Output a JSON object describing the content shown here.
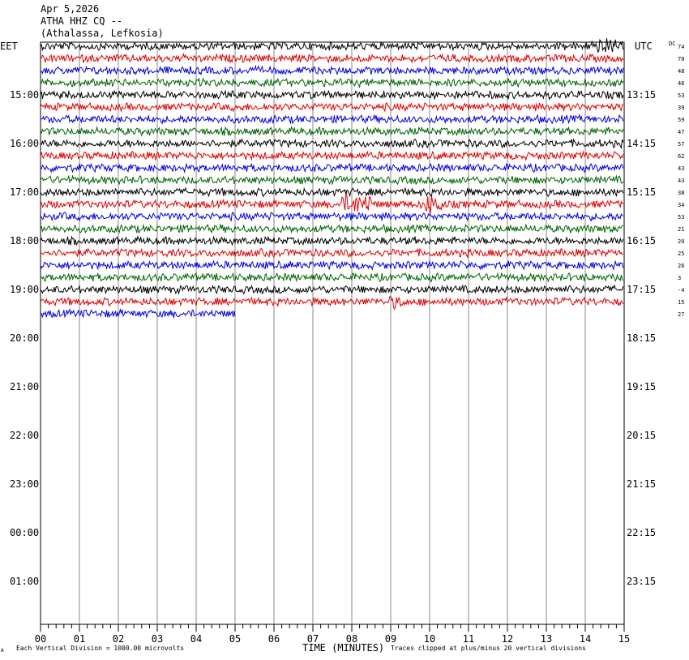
{
  "header": {
    "date": "Apr 5,2026",
    "station": "ATHA HHZ CQ --",
    "location": "(Athalassa, Lefkosia)"
  },
  "left_tz": "EET",
  "right_tz": "UTC",
  "dc_label": "DC",
  "footer": {
    "corner_mark": "A",
    "scale_note": "Each Vertical Division = 1000.00 microvolts",
    "xlabel": "TIME (MINUTES)",
    "clip_note": "Traces clipped at plus/minus 20 vertical divisions"
  },
  "chart_data": {
    "type": "line",
    "title": "ATHA HHZ CQ --",
    "xlabel": "TIME (MINUTES)",
    "x_ticks": [
      "00",
      "01",
      "02",
      "03",
      "04",
      "05",
      "06",
      "07",
      "08",
      "09",
      "10",
      "11",
      "12",
      "13",
      "14",
      "15"
    ],
    "xlim": [
      0,
      15
    ],
    "left_time_labels": [
      "15:00",
      "16:00",
      "17:00",
      "18:00",
      "19:00",
      "20:00",
      "21:00",
      "22:00",
      "23:00",
      "00:00",
      "01:00"
    ],
    "right_time_labels": [
      "13:15",
      "14:15",
      "15:15",
      "16:15",
      "17:15",
      "18:15",
      "19:15",
      "20:15",
      "21:15",
      "22:15",
      "23:15"
    ],
    "trace_colors": [
      "#000000",
      "#e00000",
      "#0000e0",
      "#006400"
    ],
    "dc_offsets": [
      74,
      70,
      48,
      46,
      53,
      39,
      59,
      47,
      57,
      62,
      43,
      43,
      38,
      34,
      53,
      21,
      20,
      25,
      26,
      3,
      -4,
      15,
      27
    ],
    "trace_count": 23,
    "last_trace_end_minute": 5
  }
}
